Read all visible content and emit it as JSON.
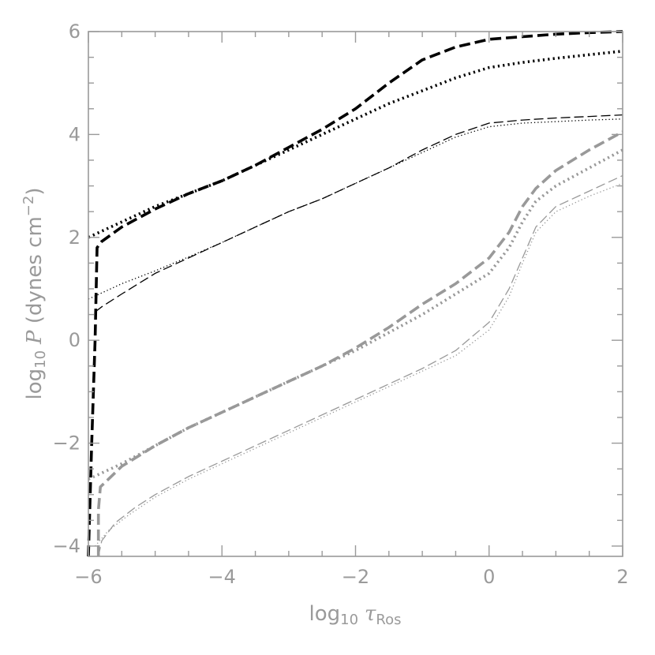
{
  "chart_data": {
    "type": "line",
    "title": "",
    "xlabel": "log10 τRos",
    "ylabel": "log10 P (dynes cm^-2)",
    "xlabel_parts": {
      "log": "log",
      "sub": "10",
      "sym": "τ",
      "symsub": "Ros"
    },
    "ylabel_parts": {
      "log": "log",
      "sub": "10",
      "sym": "P",
      "unit_open": " (dynes cm",
      "exp": "−2",
      "unit_close": ")"
    },
    "xlim": [
      -6,
      2
    ],
    "ylim": [
      -4.2,
      6
    ],
    "xticks": [
      -6,
      -4,
      -2,
      0,
      2
    ],
    "xtick_labels": [
      "−6",
      "−4",
      "−2",
      "0",
      "2"
    ],
    "yticks": [
      -4,
      -2,
      0,
      2,
      4,
      6
    ],
    "ytick_labels": [
      "−4",
      "−2",
      "0",
      "2",
      "4",
      "6"
    ],
    "grid": false,
    "series": [
      {
        "color": "#000000",
        "style": "dashed",
        "weight": "thick",
        "points": [
          [
            -6.0,
            -4.2
          ],
          [
            -5.95,
            -2.0
          ],
          [
            -5.9,
            0.0
          ],
          [
            -5.87,
            1.8
          ],
          [
            -5.8,
            1.92
          ],
          [
            -5.5,
            2.2
          ],
          [
            -5.0,
            2.55
          ],
          [
            -4.5,
            2.85
          ],
          [
            -4.0,
            3.1
          ],
          [
            -3.5,
            3.4
          ],
          [
            -3.0,
            3.75
          ],
          [
            -2.5,
            4.1
          ],
          [
            -2.0,
            4.5
          ],
          [
            -1.5,
            5.0
          ],
          [
            -1.0,
            5.45
          ],
          [
            -0.5,
            5.7
          ],
          [
            0.0,
            5.85
          ],
          [
            0.5,
            5.9
          ],
          [
            1.0,
            5.95
          ],
          [
            1.5,
            5.98
          ],
          [
            2.0,
            6.0
          ]
        ]
      },
      {
        "color": "#000000",
        "style": "dotted",
        "weight": "thick",
        "points": [
          [
            -6.0,
            2.0
          ],
          [
            -5.5,
            2.3
          ],
          [
            -5.0,
            2.6
          ],
          [
            -4.5,
            2.85
          ],
          [
            -4.0,
            3.1
          ],
          [
            -3.5,
            3.4
          ],
          [
            -3.0,
            3.7
          ],
          [
            -2.5,
            4.0
          ],
          [
            -2.0,
            4.3
          ],
          [
            -1.5,
            4.6
          ],
          [
            -1.0,
            4.85
          ],
          [
            -0.5,
            5.1
          ],
          [
            0.0,
            5.3
          ],
          [
            0.5,
            5.4
          ],
          [
            1.0,
            5.48
          ],
          [
            1.5,
            5.55
          ],
          [
            2.0,
            5.62
          ]
        ]
      },
      {
        "color": "#000000",
        "style": "dashed",
        "weight": "thin",
        "points": [
          [
            -5.9,
            0.55
          ],
          [
            -5.8,
            0.65
          ],
          [
            -5.5,
            0.9
          ],
          [
            -5.0,
            1.3
          ],
          [
            -4.5,
            1.6
          ],
          [
            -4.0,
            1.9
          ],
          [
            -3.5,
            2.2
          ],
          [
            -3.0,
            2.5
          ],
          [
            -2.5,
            2.75
          ],
          [
            -2.0,
            3.05
          ],
          [
            -1.5,
            3.35
          ],
          [
            -1.0,
            3.7
          ],
          [
            -0.5,
            4.0
          ],
          [
            0.0,
            4.22
          ],
          [
            0.5,
            4.28
          ],
          [
            1.0,
            4.32
          ],
          [
            1.5,
            4.35
          ],
          [
            2.0,
            4.38
          ]
        ]
      },
      {
        "color": "#000000",
        "style": "dotted",
        "weight": "thin",
        "points": [
          [
            -6.0,
            0.8
          ],
          [
            -5.5,
            1.1
          ],
          [
            -5.0,
            1.35
          ],
          [
            -4.5,
            1.62
          ],
          [
            -4.0,
            1.9
          ],
          [
            -3.5,
            2.2
          ],
          [
            -3.0,
            2.5
          ],
          [
            -2.5,
            2.75
          ],
          [
            -2.0,
            3.05
          ],
          [
            -1.5,
            3.35
          ],
          [
            -1.0,
            3.65
          ],
          [
            -0.5,
            3.95
          ],
          [
            0.0,
            4.15
          ],
          [
            0.5,
            4.22
          ],
          [
            1.0,
            4.25
          ],
          [
            1.5,
            4.28
          ],
          [
            2.0,
            4.3
          ]
        ]
      },
      {
        "color": "#999999",
        "style": "dashed",
        "weight": "thick",
        "points": [
          [
            -5.85,
            -4.2
          ],
          [
            -5.85,
            -3.3
          ],
          [
            -5.82,
            -2.85
          ],
          [
            -5.7,
            -2.7
          ],
          [
            -5.5,
            -2.45
          ],
          [
            -5.0,
            -2.05
          ],
          [
            -4.5,
            -1.7
          ],
          [
            -4.0,
            -1.4
          ],
          [
            -3.5,
            -1.1
          ],
          [
            -3.0,
            -0.8
          ],
          [
            -2.5,
            -0.5
          ],
          [
            -2.0,
            -0.15
          ],
          [
            -1.5,
            0.25
          ],
          [
            -1.0,
            0.7
          ],
          [
            -0.5,
            1.1
          ],
          [
            0.0,
            1.6
          ],
          [
            0.3,
            2.1
          ],
          [
            0.5,
            2.6
          ],
          [
            0.7,
            2.95
          ],
          [
            1.0,
            3.3
          ],
          [
            1.5,
            3.7
          ],
          [
            2.0,
            4.05
          ]
        ]
      },
      {
        "color": "#999999",
        "style": "dotted",
        "weight": "thick",
        "points": [
          [
            -6.0,
            -2.7
          ],
          [
            -5.5,
            -2.4
          ],
          [
            -5.0,
            -2.05
          ],
          [
            -4.5,
            -1.7
          ],
          [
            -4.0,
            -1.4
          ],
          [
            -3.5,
            -1.1
          ],
          [
            -3.0,
            -0.8
          ],
          [
            -2.5,
            -0.5
          ],
          [
            -2.0,
            -0.2
          ],
          [
            -1.5,
            0.15
          ],
          [
            -1.0,
            0.5
          ],
          [
            -0.5,
            0.9
          ],
          [
            0.0,
            1.3
          ],
          [
            0.3,
            1.8
          ],
          [
            0.5,
            2.3
          ],
          [
            0.7,
            2.7
          ],
          [
            1.0,
            3.0
          ],
          [
            1.5,
            3.35
          ],
          [
            2.0,
            3.7
          ]
        ]
      },
      {
        "color": "#999999",
        "style": "dashed",
        "weight": "thin",
        "points": [
          [
            -5.85,
            -4.2
          ],
          [
            -5.8,
            -3.9
          ],
          [
            -5.6,
            -3.55
          ],
          [
            -5.3,
            -3.25
          ],
          [
            -5.0,
            -3.0
          ],
          [
            -4.5,
            -2.65
          ],
          [
            -4.0,
            -2.35
          ],
          [
            -3.5,
            -2.05
          ],
          [
            -3.0,
            -1.75
          ],
          [
            -2.5,
            -1.45
          ],
          [
            -2.0,
            -1.15
          ],
          [
            -1.5,
            -0.85
          ],
          [
            -1.0,
            -0.55
          ],
          [
            -0.5,
            -0.2
          ],
          [
            0.0,
            0.35
          ],
          [
            0.3,
            1.0
          ],
          [
            0.5,
            1.6
          ],
          [
            0.7,
            2.2
          ],
          [
            1.0,
            2.6
          ],
          [
            1.5,
            2.9
          ],
          [
            2.0,
            3.2
          ]
        ]
      },
      {
        "color": "#999999",
        "style": "dotted",
        "weight": "thin",
        "points": [
          [
            -5.9,
            -4.0
          ],
          [
            -5.7,
            -3.7
          ],
          [
            -5.4,
            -3.4
          ],
          [
            -5.0,
            -3.05
          ],
          [
            -4.5,
            -2.7
          ],
          [
            -4.0,
            -2.4
          ],
          [
            -3.5,
            -2.1
          ],
          [
            -3.0,
            -1.8
          ],
          [
            -2.5,
            -1.5
          ],
          [
            -2.0,
            -1.2
          ],
          [
            -1.5,
            -0.9
          ],
          [
            -1.0,
            -0.6
          ],
          [
            -0.5,
            -0.3
          ],
          [
            0.0,
            0.2
          ],
          [
            0.3,
            0.85
          ],
          [
            0.5,
            1.5
          ],
          [
            0.7,
            2.1
          ],
          [
            1.0,
            2.5
          ],
          [
            1.5,
            2.8
          ],
          [
            2.0,
            3.05
          ]
        ]
      }
    ]
  }
}
